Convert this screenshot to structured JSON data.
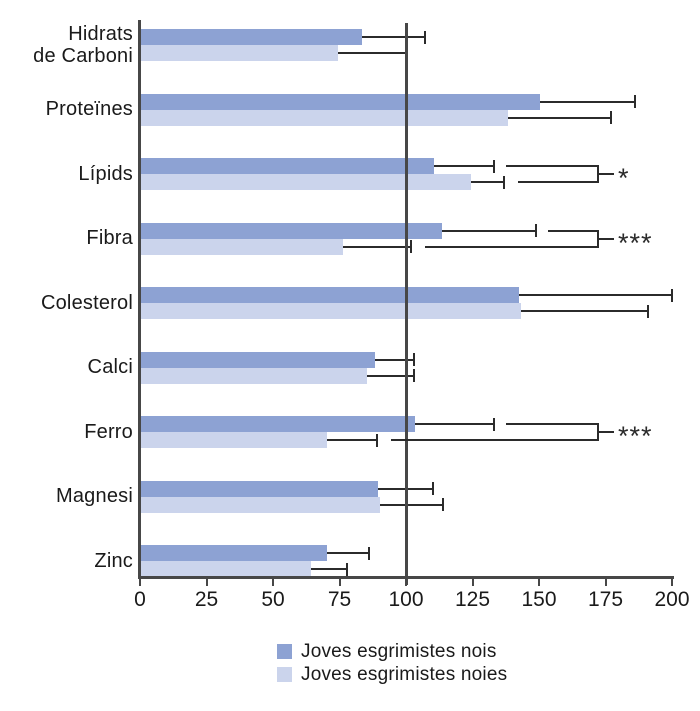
{
  "chart_data": {
    "type": "bar",
    "orientation": "horizontal",
    "title": "",
    "xlabel": "",
    "ylabel": "",
    "categories": [
      "Hidrats de Carboni",
      "Proteïnes",
      "Lípids",
      "Fibra",
      "Colesterol",
      "Calci",
      "Ferro",
      "Magnesi",
      "Zinc"
    ],
    "series": [
      {
        "name": "Joves esgrimistes nois",
        "color": "#8da2d3",
        "values": [
          83,
          150,
          110,
          113,
          142,
          88,
          103,
          89,
          70
        ],
        "error_high": [
          107,
          186,
          133,
          149,
          200,
          103,
          133,
          110,
          86
        ]
      },
      {
        "name": "Joves esgrimistes noies",
        "color": "#cbd4ec",
        "values": [
          74,
          138,
          124,
          76,
          143,
          85,
          70,
          90,
          64
        ],
        "error_high": [
          100,
          177,
          137,
          102,
          191,
          103,
          89,
          114,
          78
        ]
      }
    ],
    "xlim": [
      0,
      200
    ],
    "x_ticks": [
      0,
      25,
      50,
      75,
      100,
      125,
      150,
      175,
      200
    ],
    "reference_line_x": 100,
    "grid": false,
    "legend_position": "bottom",
    "significance": [
      {
        "category": "Lípids",
        "label": "*"
      },
      {
        "category": "Fibra",
        "label": "***"
      },
      {
        "category": "Ferro",
        "label": "***"
      }
    ],
    "colors": {
      "axis": "#474747",
      "reference_line": "#474747",
      "error_bar": "#2b2b2b",
      "text": "#1a1a1a",
      "background": "#ffffff"
    }
  }
}
